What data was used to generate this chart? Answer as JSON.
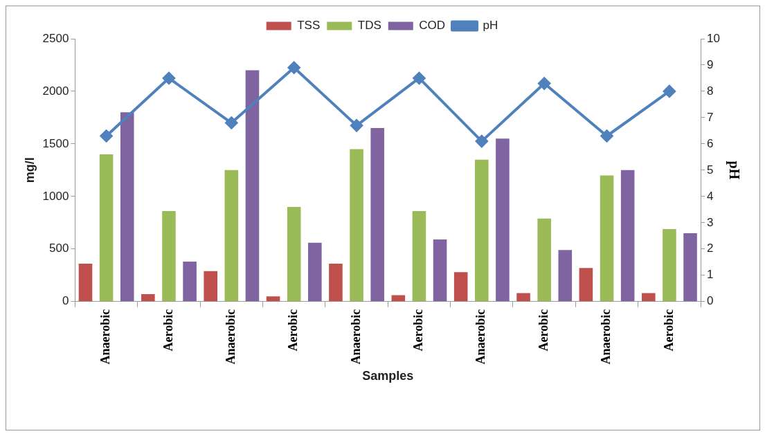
{
  "chart_data": {
    "type": "bar",
    "xlabel": "Samples",
    "ylabel": "mg/l",
    "y2label": "pH",
    "categories": [
      "Anaerobic",
      "Aerobic",
      "Anaerobic",
      "Aerobic",
      "Anaerobic",
      "Aerobic",
      "Anaerobic",
      "Aerobic",
      "Anaerobic",
      "Aerobic"
    ],
    "series": [
      {
        "name": "TSS",
        "color": "#c0504d",
        "values": [
          360,
          70,
          290,
          50,
          360,
          60,
          280,
          80,
          320,
          80
        ]
      },
      {
        "name": "TDS",
        "color": "#9bbb59",
        "values": [
          1400,
          860,
          1250,
          900,
          1450,
          860,
          1350,
          790,
          1200,
          690
        ]
      },
      {
        "name": "COD",
        "color": "#8064a2",
        "values": [
          1800,
          380,
          2200,
          560,
          1650,
          590,
          1550,
          490,
          1250,
          650
        ]
      },
      {
        "name": "pH",
        "type": "line",
        "axis": "y2",
        "color": "#4f81bd",
        "values": [
          6.3,
          8.5,
          6.8,
          8.9,
          6.7,
          8.5,
          6.1,
          8.3,
          6.3,
          8.0
        ]
      }
    ],
    "ylim": [
      0,
      2500
    ],
    "yticks": [
      0,
      500,
      1000,
      1500,
      2000,
      2500
    ],
    "y2lim": [
      0,
      10
    ],
    "y2ticks": [
      0,
      1,
      2,
      3,
      4,
      5,
      6,
      7,
      8,
      9,
      10
    ],
    "grid": false,
    "legend": "top",
    "marker": "diamond"
  }
}
